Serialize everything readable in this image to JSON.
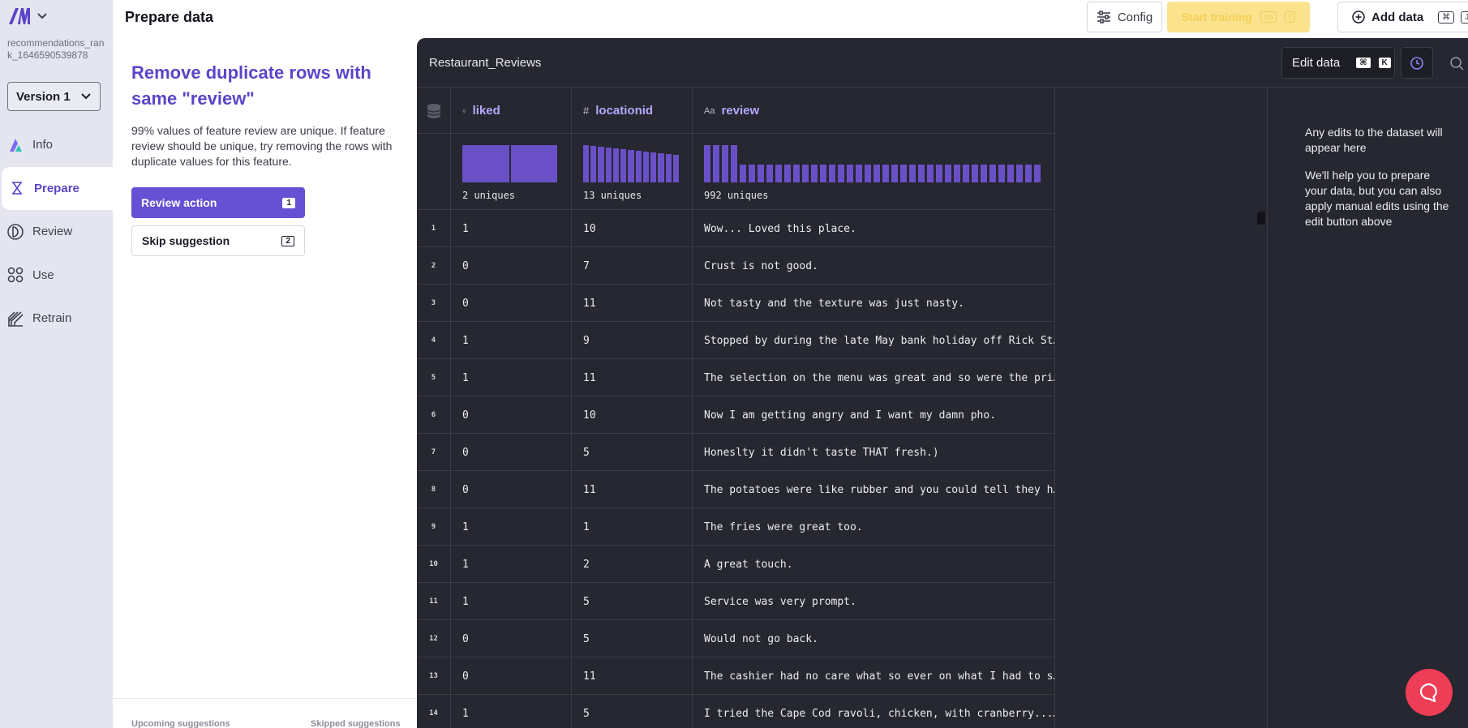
{
  "sidebar": {
    "project": "recommendations_rank_1646590539878",
    "version": "Version 1",
    "items": [
      {
        "label": "Info",
        "icon": "info-triangle-icon"
      },
      {
        "label": "Prepare",
        "icon": "prepare-icon",
        "active": true
      },
      {
        "label": "Review",
        "icon": "review-icon"
      },
      {
        "label": "Use",
        "icon": "use-icon"
      },
      {
        "label": "Retrain",
        "icon": "retrain-icon"
      }
    ]
  },
  "header": {
    "title": "Prepare data",
    "config_label": "Config",
    "train_label": "Start training",
    "train_kbd1": "ctrl",
    "train_kbd2": "T",
    "add_label": "Add data",
    "add_kbd1": "⌘",
    "add_kbd2": "J"
  },
  "suggestion": {
    "title": "Remove duplicate rows with same \"review\"",
    "description": "99% values of feature review are unique. If feature review should be unique, try removing the rows with duplicate values for this feature.",
    "review_label": "Review action",
    "review_kbd": "1",
    "skip_label": "Skip suggestion",
    "skip_kbd": "2",
    "upcoming_label": "Upcoming suggestions",
    "skipped_label": "Skipped suggestions"
  },
  "dataset": {
    "name": "Restaurant_Reviews",
    "edit_label": "Edit data",
    "edit_kbd1": "⌘",
    "edit_kbd2": "K",
    "edits_note_1": "Any edits to the dataset will appear here",
    "edits_note_2": "We'll help you to prepare your data, but you can also apply manual edits using the edit button above"
  },
  "table": {
    "columns": [
      {
        "name": "liked",
        "type_icon": "◦",
        "uniques": "2 uniques"
      },
      {
        "name": "locationid",
        "type_icon": "#",
        "uniques": "13 uniques"
      },
      {
        "name": "review",
        "type_icon": "Aa",
        "uniques": "992 uniques"
      }
    ],
    "rows": [
      {
        "n": "1",
        "liked": "1",
        "locationid": "10",
        "review": "Wow... Loved this place."
      },
      {
        "n": "2",
        "liked": "0",
        "locationid": "7",
        "review": "Crust is not good."
      },
      {
        "n": "3",
        "liked": "0",
        "locationid": "11",
        "review": "Not tasty and the texture was just nasty."
      },
      {
        "n": "4",
        "liked": "1",
        "locationid": "9",
        "review": "Stopped by during the late May bank holiday off Rick St…"
      },
      {
        "n": "5",
        "liked": "1",
        "locationid": "11",
        "review": "The selection on the menu was great and so were the pri…"
      },
      {
        "n": "6",
        "liked": "0",
        "locationid": "10",
        "review": "Now I am getting angry and I want my damn pho."
      },
      {
        "n": "7",
        "liked": "0",
        "locationid": "5",
        "review": "Honeslty it didn't taste THAT fresh.)"
      },
      {
        "n": "8",
        "liked": "0",
        "locationid": "11",
        "review": "The potatoes were like rubber and you could tell they h…"
      },
      {
        "n": "9",
        "liked": "1",
        "locationid": "1",
        "review": "The fries were great too."
      },
      {
        "n": "10",
        "liked": "1",
        "locationid": "2",
        "review": "A great touch."
      },
      {
        "n": "11",
        "liked": "1",
        "locationid": "5",
        "review": "Service was very prompt."
      },
      {
        "n": "12",
        "liked": "0",
        "locationid": "5",
        "review": "Would not go back."
      },
      {
        "n": "13",
        "liked": "0",
        "locationid": "11",
        "review": "The cashier had no care what so ever on what I had to s…"
      },
      {
        "n": "14",
        "liked": "1",
        "locationid": "5",
        "review": "I tried the Cape Cod ravoli, chicken, with cranberry...…"
      }
    ],
    "histograms": {
      "liked": [
        1,
        1
      ],
      "locationid": [
        1,
        0.97,
        0.95,
        0.93,
        0.91,
        0.89,
        0.87,
        0.85,
        0.83,
        0.81,
        0.79,
        0.76,
        0.73
      ],
      "review": [
        1,
        1,
        1,
        1,
        0.48
      ]
    }
  },
  "colors": {
    "accent": "#6650d3",
    "histogram": "#6a50c7",
    "train_button": "#fbe38e",
    "chat_button": "#ee3d56"
  }
}
